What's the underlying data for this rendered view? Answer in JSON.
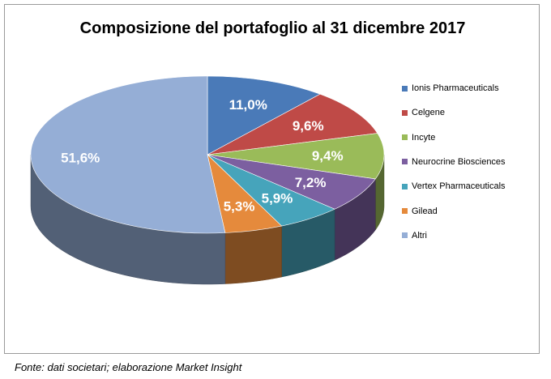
{
  "chart_data": {
    "type": "pie",
    "title": "Composizione del portafoglio al 31 dicembre 2017",
    "categories": [
      "Ionis Pharmaceuticals",
      "Celgene",
      "Incyte",
      "Neurocrine Biosciences",
      "Vertex Pharmaceuticals",
      "Gilead",
      "Altri"
    ],
    "values": [
      11.0,
      9.6,
      9.4,
      7.2,
      5.9,
      5.3,
      51.6
    ],
    "value_labels": [
      "11,0%",
      "9,6%",
      "9,4%",
      "7,2%",
      "5,9%",
      "5,3%",
      "51,6%"
    ],
    "colors": [
      "#4a7ab8",
      "#bf4a47",
      "#9abb59",
      "#7c5fa0",
      "#46a4bb",
      "#e58a3c",
      "#95aed6"
    ],
    "legend_position": "right",
    "start_angle": "12 o'clock, clockwise",
    "style": "3D tilted pie"
  },
  "source_note": "Fonte: dati societari; elaborazione Market Insight"
}
